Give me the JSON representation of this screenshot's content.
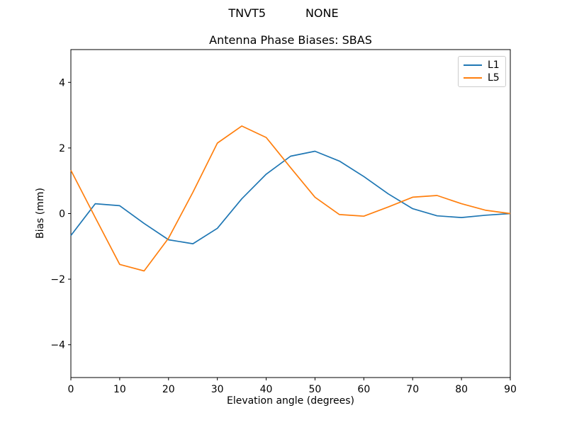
{
  "figure": {
    "suptitle": "TNVT5           NONE",
    "title": "Antenna Phase Biases: SBAS"
  },
  "chart_data": {
    "type": "line",
    "title": "Antenna Phase Biases: SBAS",
    "xlabel": "Elevation angle (degrees)",
    "ylabel": "Bias (mm)",
    "xlim": [
      0,
      90
    ],
    "ylim": [
      -5,
      5
    ],
    "xticks": [
      0,
      10,
      20,
      30,
      40,
      50,
      60,
      70,
      80,
      90
    ],
    "yticks": [
      -4,
      -2,
      0,
      2,
      4
    ],
    "grid": false,
    "legend_position": "upper right",
    "x": [
      0,
      5,
      10,
      15,
      20,
      25,
      30,
      35,
      40,
      45,
      50,
      55,
      60,
      65,
      70,
      75,
      80,
      85,
      90
    ],
    "series": [
      {
        "name": "L1",
        "color": "#1f77b4",
        "values": [
          -0.67,
          0.3,
          0.24,
          -0.3,
          -0.8,
          -0.92,
          -0.45,
          0.45,
          1.2,
          1.75,
          1.9,
          1.6,
          1.13,
          0.6,
          0.15,
          -0.07,
          -0.12,
          -0.05,
          0.0
        ]
      },
      {
        "name": "L5",
        "color": "#ff7f0e",
        "values": [
          1.32,
          -0.12,
          -1.55,
          -1.75,
          -0.75,
          0.65,
          2.15,
          2.67,
          2.32,
          1.4,
          0.5,
          -0.03,
          -0.08,
          0.2,
          0.5,
          0.55,
          0.3,
          0.1,
          0.0
        ]
      }
    ]
  },
  "colors": {
    "l1": "#1f77b4",
    "l5": "#ff7f0e",
    "axis": "#000000",
    "background": "#ffffff",
    "legend_border": "#cccccc"
  }
}
